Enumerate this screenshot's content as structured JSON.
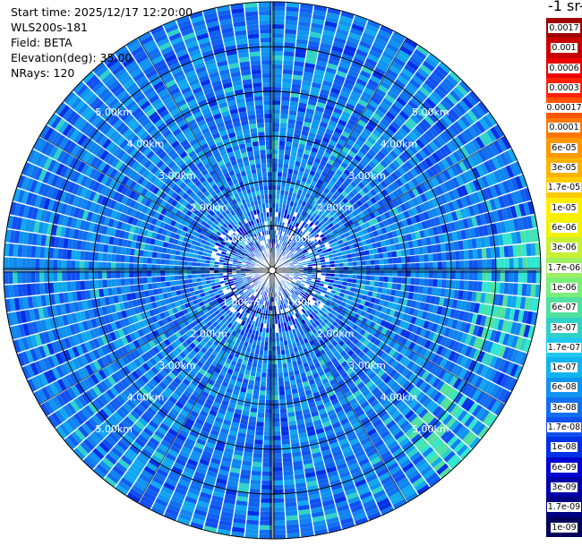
{
  "header": {
    "start_time": "Start time: 2025/12/17 12:20:00",
    "instrument": "WLS200s-181",
    "field": "Field: BETA",
    "elevation": "Elevation(deg): 35.00",
    "nrays": "NRays: 120"
  },
  "colorbar": {
    "title": "-1 sr-1",
    "labels": [
      "0.0017",
      "0.001",
      "0.0006",
      "0.0003",
      "0.00017",
      "0.0001",
      "6e-05",
      "3e-05",
      "1.7e-05",
      "1e-05",
      "6e-06",
      "3e-06",
      "1.7e-06",
      "1e-06",
      "6e-07",
      "3e-07",
      "1.7e-07",
      "1e-07",
      "6e-08",
      "3e-08",
      "1.7e-08",
      "1e-08",
      "6e-09",
      "3e-09",
      "1.7e-09",
      "1e-09"
    ],
    "colors": [
      "#a00000",
      "#c80000",
      "#ee0000",
      "#ff2200",
      "#ff5500",
      "#ff7700",
      "#ff9900",
      "#ffb200",
      "#ffcc00",
      "#ffee00",
      "#f2f200",
      "#c8f032",
      "#a0f064",
      "#78f078",
      "#50e0a0",
      "#30d2c8",
      "#20c8f0",
      "#10b4f0",
      "#1094f0",
      "#1070f0",
      "#1050f0",
      "#0030e6",
      "#0000d2",
      "#0000aa",
      "#000082",
      "#00005a"
    ]
  },
  "chart_data": {
    "type": "heatmap",
    "projection": "polar (PPI)",
    "field": "BETA",
    "nrays": 120,
    "elevation_deg": 35.0,
    "range_rings_km": [
      1.0,
      2.0,
      3.0,
      4.0,
      5.0
    ],
    "range_ring_labels": [
      "1.00km",
      "2.00km",
      "3.00km",
      "4.00km",
      "5.00km"
    ],
    "color_scale": "log",
    "value_range": [
      1e-09,
      0.0017
    ],
    "typical_value_range": [
      3e-08,
      1.7e-07
    ],
    "grid": true
  }
}
